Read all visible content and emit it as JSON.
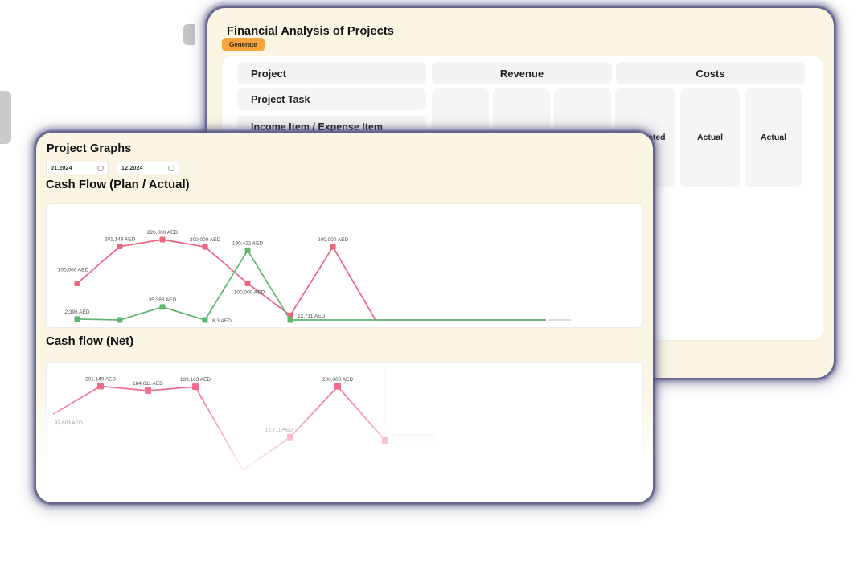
{
  "back_window": {
    "title": "Financial Analysis of Projects",
    "generate_button": "Generate",
    "table": {
      "project_header": "Project",
      "revenue_header": "Revenue",
      "costs_header": "Costs",
      "project_rows": [
        "Project Task",
        "Income Item / Expense Item"
      ],
      "revenue_subcolumns": [
        "",
        "",
        ""
      ],
      "costs_subcolumns": [
        "Estimated",
        "Actual",
        "Actual"
      ]
    }
  },
  "front_window": {
    "title": "Project Graphs",
    "date_from": "01.2024",
    "date_to": "12.2024"
  },
  "icons": {
    "calendar": "calendar-grid"
  },
  "colors": {
    "pink_line": "#ee6584",
    "green_line": "#5fb671",
    "accent_orange": "#f7a43c",
    "card_cream": "#fbf6e4",
    "shadow_navy": "#4e4e7c"
  },
  "chart_data": [
    {
      "type": "line",
      "title": "Cash Flow (Plan / Actual)",
      "unit": "AED",
      "x_period": [
        "01.2024",
        "12.2024"
      ],
      "months": 12,
      "ylim": [
        0,
        240000
      ],
      "grid": false,
      "legend": "none",
      "series": [
        {
          "name": "Plan",
          "color": "#ee6584",
          "values": [
            100000,
            201149,
            220000,
            200000,
            100000,
            12711,
            200000,
            0,
            0,
            0,
            0,
            0
          ],
          "labels": [
            "100,000 AED",
            "201,149 AED",
            "220,000 AED",
            "200,000 AED",
            "100,000 AED",
            "12,711 AED",
            "200,000 AED",
            null,
            null,
            null,
            null,
            null
          ],
          "label_pos": [
            "above-far",
            "above",
            "above",
            "above",
            "below",
            "right",
            "above",
            null,
            null,
            null,
            null,
            null
          ],
          "markers": [
            true,
            true,
            true,
            true,
            true,
            true,
            true,
            false,
            false,
            false,
            false,
            false
          ]
        },
        {
          "name": "Actual",
          "color": "#5fb671",
          "values": [
            2396,
            0,
            35388,
            8.3,
            190412,
            0,
            0,
            0,
            0,
            0,
            0,
            0
          ],
          "labels": [
            "2,396 AED",
            null,
            "35,388 AED",
            "8,3 AED",
            "190,412 AED",
            null,
            null,
            null,
            null,
            null,
            null,
            null
          ],
          "label_pos": [
            "above",
            null,
            "above",
            "right",
            "above",
            null,
            null,
            null,
            null,
            null,
            null,
            null
          ],
          "markers": [
            true,
            true,
            true,
            true,
            true,
            true,
            false,
            false,
            false,
            false,
            false,
            false
          ]
        }
      ]
    },
    {
      "type": "line",
      "title": "Cash flow (Net)",
      "unit": "AED",
      "x_period": [
        "01.2024",
        "12.2024"
      ],
      "ylim": [
        -120000,
        240000
      ],
      "grid": false,
      "legend": "none",
      "series": [
        {
          "name": "Net",
          "color": "#ee6584",
          "values": [
            97603,
            201149,
            184611,
            199163,
            -110000,
            12711,
            200000,
            0
          ],
          "labels": [
            "97,603 AED",
            "201,149 AED",
            "184,611 AED",
            "199,163 AED",
            null,
            "12,711 AED",
            "200,000 AED",
            null
          ],
          "label_pos": [
            "below-start",
            "above",
            "above",
            "above",
            null,
            "above-end",
            "above",
            null
          ],
          "markers": [
            false,
            true,
            true,
            true,
            false,
            true,
            true,
            true
          ]
        }
      ]
    }
  ]
}
